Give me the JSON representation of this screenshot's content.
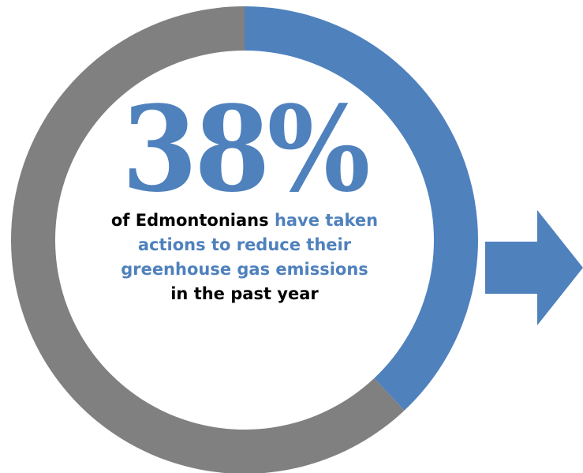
{
  "chart_data": {
    "type": "pie",
    "variant": "donut",
    "values": [
      38,
      62
    ],
    "percent_label": "38%"
  },
  "colors": {
    "highlight": "#4f81bd",
    "remainder": "#808080",
    "text_dark": "#000000"
  },
  "caption": {
    "part1": "of Edmontonians ",
    "part2": "have taken actions to reduce their greenhouse gas emissions",
    "part3": "in the past year"
  },
  "icons": {
    "arrow": "right-arrow-icon"
  }
}
